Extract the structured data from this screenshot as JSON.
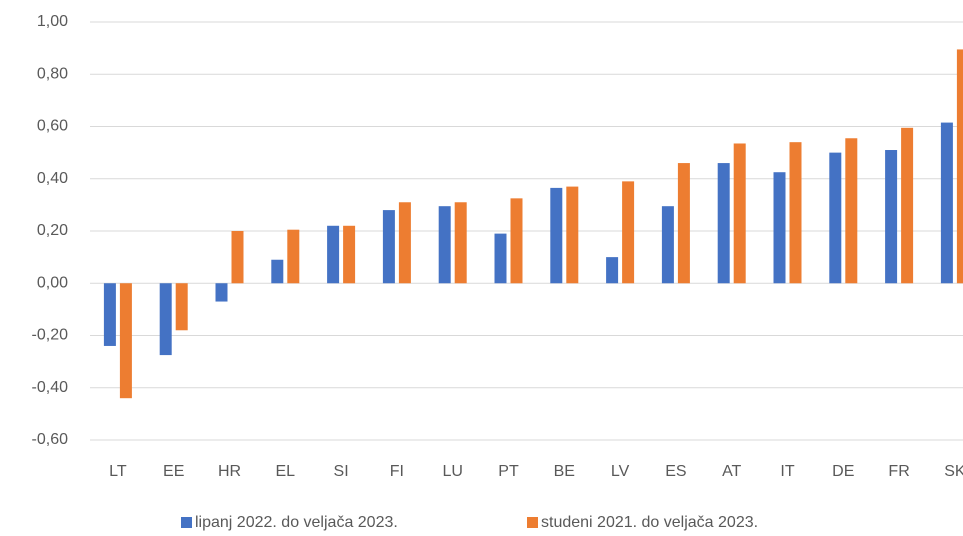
{
  "chart_data": {
    "type": "bar",
    "categories": [
      "LT",
      "EE",
      "HR",
      "EL",
      "SI",
      "FI",
      "LU",
      "PT",
      "BE",
      "LV",
      "ES",
      "AT",
      "IT",
      "DE",
      "FR",
      "SK"
    ],
    "series": [
      {
        "name": "lipanj 2022. do veljača 2023.",
        "color": "#4472c4",
        "values": [
          -0.24,
          -0.275,
          -0.07,
          0.09,
          0.22,
          0.28,
          0.295,
          0.19,
          0.365,
          0.1,
          0.295,
          0.46,
          0.425,
          0.5,
          0.51,
          0.615
        ]
      },
      {
        "name": "studeni 2021. do veljača 2023.",
        "color": "#ed7d31",
        "values": [
          -0.44,
          -0.18,
          0.2,
          0.205,
          0.22,
          0.31,
          0.31,
          0.325,
          0.37,
          0.39,
          0.46,
          0.535,
          0.54,
          0.555,
          0.595,
          0.895
        ]
      }
    ],
    "ylim": [
      -0.6,
      1.0
    ],
    "yticks": [
      {
        "value": -0.6,
        "label": "-0,60"
      },
      {
        "value": -0.4,
        "label": "-0,40"
      },
      {
        "value": -0.2,
        "label": "-0,20"
      },
      {
        "value": 0,
        "label": "0,00"
      },
      {
        "value": 0.2,
        "label": "0,20"
      },
      {
        "value": 0.4,
        "label": "0,40"
      },
      {
        "value": 0.6,
        "label": "0,60"
      },
      {
        "value": 0.8,
        "label": "0,80"
      },
      {
        "value": 1.0,
        "label": "1,00"
      }
    ],
    "grid": true,
    "legend": "bottom"
  }
}
